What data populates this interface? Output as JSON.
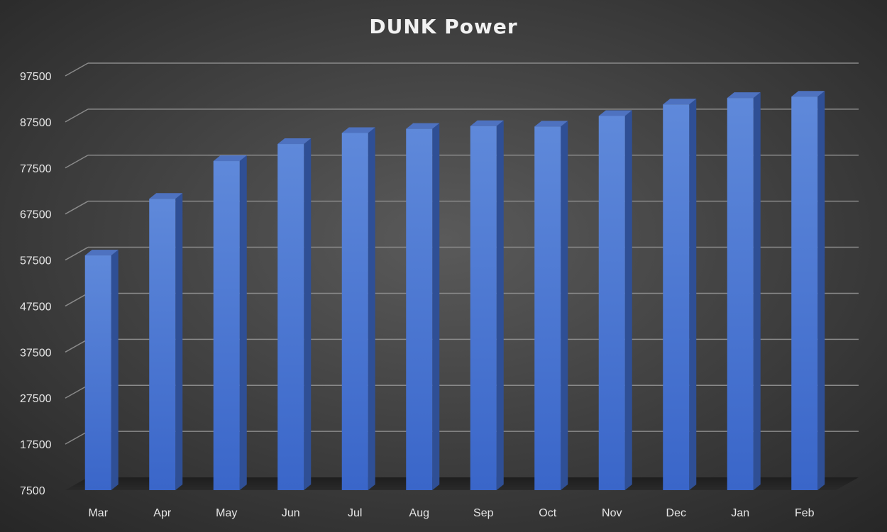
{
  "chart_data": {
    "type": "bar",
    "title": "DUNK Power",
    "xlabel": "",
    "ylabel": "",
    "categories": [
      "Mar",
      "Apr",
      "May",
      "Jun",
      "Jul",
      "Aug",
      "Sep",
      "Oct",
      "Nov",
      "Dec",
      "Jan",
      "Feb"
    ],
    "series": [
      {
        "values": [
          58500,
          70800,
          79000,
          82700,
          85100,
          86000,
          86600,
          86500,
          88800,
          91300,
          92700,
          93000
        ]
      }
    ],
    "ylim": [
      7500,
      97500
    ],
    "yticks": [
      "7500",
      "17500",
      "27500",
      "37500",
      "47500",
      "57500",
      "67500",
      "77500",
      "87500",
      "97500"
    ],
    "grid": true,
    "legend": "none",
    "colors": {
      "bar_front_top": "#5b86d9",
      "bar_front_bottom": "#3d68c9",
      "bar_side": "#2f4f95",
      "bar_top": "#4e72c0",
      "gridline": "#8a8a8a",
      "background_center": "#585858",
      "background_edge": "#262626"
    }
  }
}
